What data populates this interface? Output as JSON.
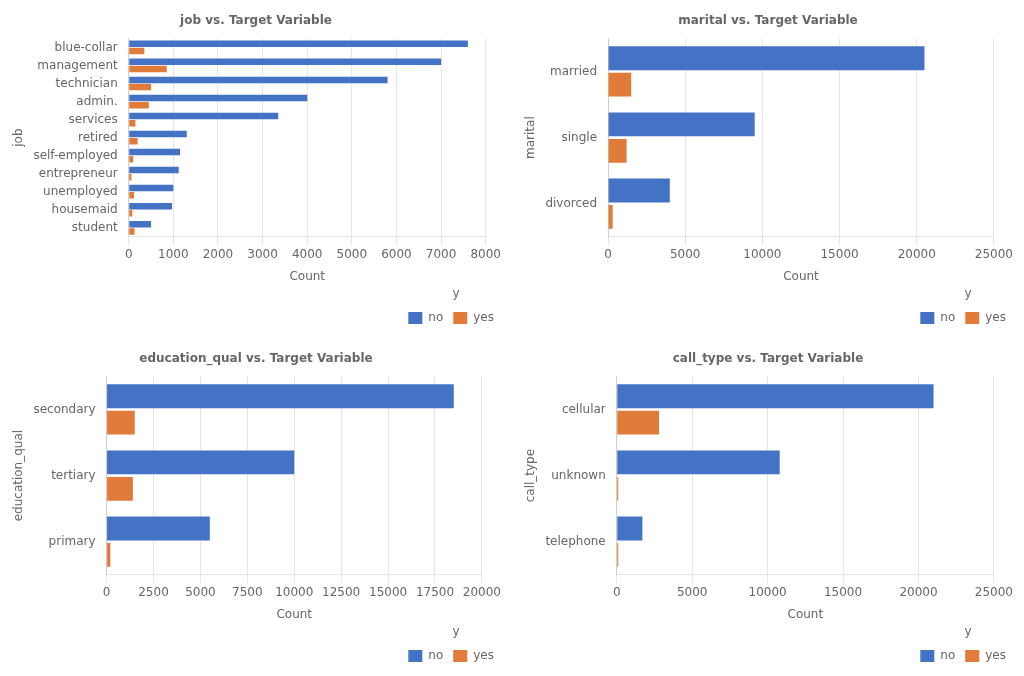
{
  "chart_data": [
    {
      "type": "bar",
      "orientation": "horizontal",
      "title": "job vs. Target Variable",
      "xlabel": "Count",
      "ylabel": "job",
      "categories": [
        "blue-collar",
        "management",
        "technician",
        "admin.",
        "services",
        "retired",
        "self-employed",
        "entrepreneur",
        "unemployed",
        "housemaid",
        "student"
      ],
      "series": [
        {
          "name": "no",
          "color": "#4472c4",
          "values": [
            7600,
            7000,
            5800,
            4000,
            3350,
            1300,
            1150,
            1120,
            1000,
            970,
            500
          ]
        },
        {
          "name": "yes",
          "color": "#e07b39",
          "values": [
            350,
            850,
            500,
            450,
            150,
            200,
            100,
            60,
            120,
            80,
            130
          ]
        }
      ],
      "xlim": [
        0,
        8000
      ],
      "xticks": [
        0,
        1000,
        2000,
        3000,
        4000,
        5000,
        6000,
        7000,
        8000
      ],
      "grid": "x",
      "legend": "lower right",
      "legend_title": "y"
    },
    {
      "type": "bar",
      "orientation": "horizontal",
      "title": "marital vs. Target Variable",
      "xlabel": "Count",
      "ylabel": "marital",
      "categories": [
        "married",
        "single",
        "divorced"
      ],
      "series": [
        {
          "name": "no",
          "color": "#4472c4",
          "values": [
            20500,
            9500,
            4000
          ]
        },
        {
          "name": "yes",
          "color": "#e07b39",
          "values": [
            1500,
            1200,
            300
          ]
        }
      ],
      "xlim": [
        0,
        25000
      ],
      "xticks": [
        0,
        5000,
        10000,
        15000,
        20000,
        25000
      ],
      "grid": "x",
      "legend": "lower right",
      "legend_title": "y"
    },
    {
      "type": "bar",
      "orientation": "horizontal",
      "title": "education_qual vs. Target Variable",
      "xlabel": "Count",
      "ylabel": "education_qual",
      "categories": [
        "secondary",
        "tertiary",
        "primary"
      ],
      "series": [
        {
          "name": "no",
          "color": "#4472c4",
          "values": [
            18500,
            10000,
            5500
          ]
        },
        {
          "name": "yes",
          "color": "#e07b39",
          "values": [
            1500,
            1400,
            200
          ]
        }
      ],
      "xlim": [
        0,
        20000
      ],
      "xticks": [
        0,
        2500,
        5000,
        7500,
        10000,
        12500,
        15000,
        17500,
        20000
      ],
      "grid": "x",
      "legend": "lower right",
      "legend_title": "y"
    },
    {
      "type": "bar",
      "orientation": "horizontal",
      "title": "call_type vs. Target Variable",
      "xlabel": "Count",
      "ylabel": "call_type",
      "categories": [
        "cellular",
        "unknown",
        "telephone"
      ],
      "series": [
        {
          "name": "no",
          "color": "#4472c4",
          "values": [
            21000,
            10800,
            1700
          ]
        },
        {
          "name": "yes",
          "color": "#e07b39",
          "values": [
            2800,
            100,
            100
          ]
        }
      ],
      "xlim": [
        0,
        25000
      ],
      "xticks": [
        0,
        5000,
        10000,
        15000,
        20000,
        25000
      ],
      "grid": "x",
      "legend": "lower right",
      "legend_title": "y"
    }
  ]
}
